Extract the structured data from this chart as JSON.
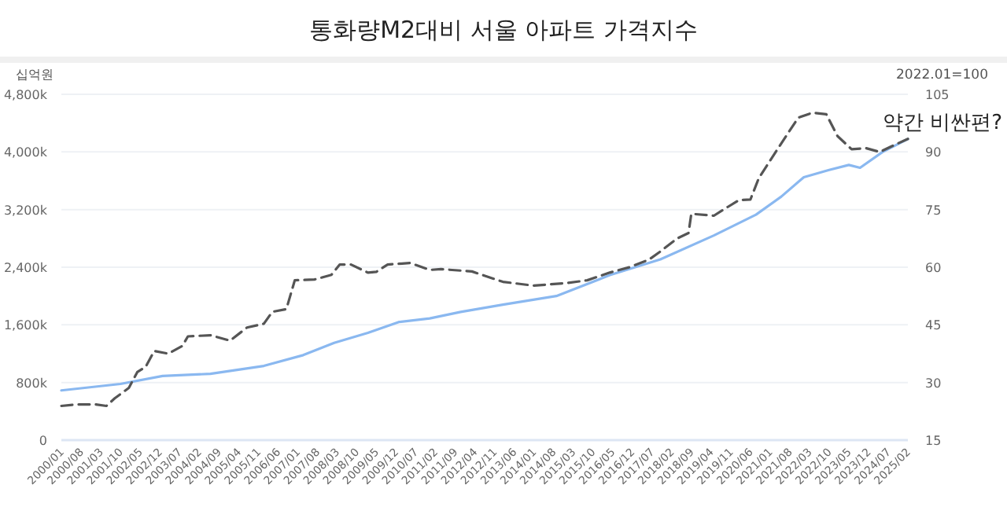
{
  "chart_data": {
    "type": "line",
    "title": "통화량M2대비 서울 아파트 가격지수",
    "ylabel": "십억원",
    "y2label": "2022.01=100",
    "xlim": [
      "2000-01",
      "2025-02"
    ],
    "xticks": [
      {
        "value": "2000-01",
        "label": "2000/01"
      },
      {
        "value": "2000-08",
        "label": "2000/08"
      },
      {
        "value": "2001-03",
        "label": "2001/03"
      },
      {
        "value": "2001-10",
        "label": "2001/10"
      },
      {
        "value": "2002-05",
        "label": "2002/05"
      },
      {
        "value": "2002-12",
        "label": "2002/12"
      },
      {
        "value": "2003-07",
        "label": "2003/07"
      },
      {
        "value": "2004-02",
        "label": "2004/02"
      },
      {
        "value": "2004-09",
        "label": "2004/09"
      },
      {
        "value": "2005-04",
        "label": "2005/04"
      },
      {
        "value": "2005-11",
        "label": "2005/11"
      },
      {
        "value": "2006-06",
        "label": "2006/06"
      },
      {
        "value": "2007-01",
        "label": "2007/01"
      },
      {
        "value": "2007-08",
        "label": "2007/08"
      },
      {
        "value": "2008-03",
        "label": "2008/03"
      },
      {
        "value": "2008-10",
        "label": "2008/10"
      },
      {
        "value": "2009-05",
        "label": "2009/05"
      },
      {
        "value": "2009-12",
        "label": "2009/12"
      },
      {
        "value": "2010-07",
        "label": "2010/07"
      },
      {
        "value": "2011-02",
        "label": "2011/02"
      },
      {
        "value": "2011-09",
        "label": "2011/09"
      },
      {
        "value": "2012-04",
        "label": "2012/04"
      },
      {
        "value": "2012-11",
        "label": "2012/11"
      },
      {
        "value": "2013-06",
        "label": "2013/06"
      },
      {
        "value": "2014-01",
        "label": "2014/01"
      },
      {
        "value": "2014-08",
        "label": "2014/08"
      },
      {
        "value": "2015-03",
        "label": "2015/03"
      },
      {
        "value": "2015-10",
        "label": "2015/10"
      },
      {
        "value": "2016-05",
        "label": "2016/05"
      },
      {
        "value": "2016-12",
        "label": "2016/12"
      },
      {
        "value": "2017-07",
        "label": "2017/07"
      },
      {
        "value": "2018-02",
        "label": "2018/02"
      },
      {
        "value": "2018-09",
        "label": "2018/09"
      },
      {
        "value": "2019-04",
        "label": "2019/04"
      },
      {
        "value": "2019-11",
        "label": "2019/11"
      },
      {
        "value": "2020-06",
        "label": "2020/06"
      },
      {
        "value": "2021-01",
        "label": "2021/01"
      },
      {
        "value": "2021-08",
        "label": "2021/08"
      },
      {
        "value": "2022-03",
        "label": "2022/03"
      },
      {
        "value": "2022-10",
        "label": "2022/10"
      },
      {
        "value": "2023-05",
        "label": "2023/05"
      },
      {
        "value": "2023-12",
        "label": "2023/12"
      },
      {
        "value": "2024-07",
        "label": "2024/07"
      },
      {
        "value": "2025-02",
        "label": "2025/02"
      }
    ],
    "ylim": [
      0,
      4800
    ],
    "yticks": [
      0,
      {
        "value": 800,
        "label": "800k"
      },
      {
        "value": 1600,
        "label": "1,600k"
      },
      {
        "value": 2400,
        "label": "2,400k"
      },
      {
        "value": 3200,
        "label": "3,200k"
      },
      {
        "value": 4000,
        "label": "4,000k"
      },
      {
        "value": 4800,
        "label": "4,800k"
      }
    ],
    "y2lim": [
      15,
      105
    ],
    "y2ticks": [
      15,
      30,
      45,
      60,
      75,
      90,
      105
    ],
    "grid": "y",
    "series": [
      {
        "color": "#8ab8f0",
        "line_style": "solid",
        "x": [
          "2000-01",
          "2001-10",
          "2003-01",
          "2004-06",
          "2006-01",
          "2007-03",
          "2008-02",
          "2009-02",
          "2010-01",
          "2010-12",
          "2011-11",
          "2013-02",
          "2014-09",
          "2016-04",
          "2017-10",
          "2019-05",
          "2020-08",
          "2021-05",
          "2022-01",
          "2022-10",
          "2023-05",
          "2023-09",
          "2024-05",
          "2025-02"
        ],
        "values": [
          690,
          780,
          890,
          920,
          1030,
          1180,
          1350,
          1490,
          1640,
          1690,
          1780,
          1880,
          2000,
          2290,
          2510,
          2840,
          3130,
          3380,
          3650,
          3750,
          3820,
          3780,
          4000,
          4180
        ]
      },
      {
        "color": "#555555",
        "line_style": "dashed",
        "axis": "y2",
        "x": [
          "2000-01",
          "2000-07",
          "2001-01",
          "2001-05",
          "2001-08",
          "2002-01",
          "2002-04",
          "2002-07",
          "2002-10",
          "2003-03",
          "2003-08",
          "2003-10",
          "2004-06",
          "2005-01",
          "2005-07",
          "2006-01",
          "2006-04",
          "2006-09",
          "2006-12",
          "2007-07",
          "2008-01",
          "2008-04",
          "2008-08",
          "2009-02",
          "2009-05",
          "2009-09",
          "2010-05",
          "2010-12",
          "2011-04",
          "2012-03",
          "2013-02",
          "2014-01",
          "2015-01",
          "2015-08",
          "2016-04",
          "2016-11",
          "2017-06",
          "2017-10",
          "2018-04",
          "2018-08",
          "2018-09",
          "2019-05",
          "2019-10",
          "2020-02",
          "2020-06",
          "2020-09",
          "2021-03",
          "2021-11",
          "2022-04",
          "2022-09",
          "2023-01",
          "2023-06",
          "2023-11",
          "2024-04",
          "2024-08",
          "2025-02"
        ],
        "values": [
          23.9,
          24.3,
          24.3,
          23.9,
          25.9,
          28.6,
          32.7,
          34.1,
          38.2,
          37.5,
          39.5,
          42,
          42.3,
          40.9,
          44.3,
          45.3,
          48.4,
          49.1,
          56.6,
          56.8,
          58,
          60.7,
          60.7,
          58.6,
          58.8,
          60.7,
          61.1,
          59.3,
          59.5,
          58.9,
          56.2,
          55.2,
          55.9,
          56.6,
          58.6,
          60,
          62,
          64.1,
          67.5,
          68.9,
          73.9,
          73.4,
          75.7,
          77.5,
          77.6,
          83.2,
          90,
          98.9,
          100.2,
          99.8,
          94.1,
          90.7,
          91,
          90,
          91.4,
          93.4
        ]
      }
    ],
    "annotations": [
      "약간 비싼편?"
    ]
  }
}
